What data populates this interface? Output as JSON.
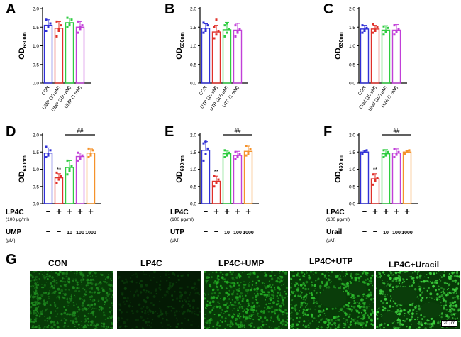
{
  "chart_data": [
    {
      "panel": "A",
      "type": "bar",
      "ylabel": "OD",
      "ylabel_sub": "630nm",
      "ylim": [
        0,
        2.0
      ],
      "yticks": [
        "0.0",
        "0.5",
        "1.0",
        "1.5",
        "2.0"
      ],
      "categories": [
        "CON",
        "UMP (10 μM)",
        "UMP (100 μM)",
        "UMP (1 mM)"
      ],
      "values": [
        1.55,
        1.47,
        1.62,
        1.5
      ],
      "errors": [
        0.15,
        0.18,
        0.12,
        0.15
      ],
      "points": [
        [
          1.4,
          1.5,
          1.6,
          1.7,
          1.52
        ],
        [
          1.25,
          1.4,
          1.55,
          1.65,
          1.45
        ],
        [
          1.5,
          1.6,
          1.7,
          1.75,
          1.55
        ],
        [
          1.35,
          1.45,
          1.55,
          1.65,
          1.5
        ]
      ],
      "colors": [
        "#2f2fd6",
        "#e0302a",
        "#2ecc40",
        "#c13fd8"
      ]
    },
    {
      "panel": "B",
      "type": "bar",
      "ylabel": "OD",
      "ylabel_sub": "630nm",
      "ylim": [
        0,
        2.0
      ],
      "yticks": [
        "0.0",
        "0.5",
        "1.0",
        "1.5",
        "2.0"
      ],
      "categories": [
        "CON",
        "UTP (10 μM)",
        "UTP (100 μM)",
        "UTP (1 mM)"
      ],
      "values": [
        1.47,
        1.37,
        1.43,
        1.42
      ],
      "errors": [
        0.12,
        0.18,
        0.2,
        0.18
      ],
      "points": [
        [
          1.35,
          1.45,
          1.55,
          1.62,
          1.4
        ],
        [
          1.2,
          1.3,
          1.4,
          1.5,
          1.7
        ],
        [
          1.25,
          1.35,
          1.45,
          1.55,
          1.6
        ],
        [
          1.25,
          1.35,
          1.45,
          1.55,
          1.4
        ]
      ],
      "colors": [
        "#2f2fd6",
        "#e0302a",
        "#2ecc40",
        "#c13fd8"
      ]
    },
    {
      "panel": "C",
      "type": "bar",
      "ylabel": "OD",
      "ylabel_sub": "630nm",
      "ylim": [
        0,
        2.0
      ],
      "yticks": [
        "0.0",
        "0.5",
        "1.0",
        "1.5",
        "2.0"
      ],
      "categories": [
        "CON",
        "Urail (10 μM)",
        "Urail (100 μM)",
        "Urail (1 mM)"
      ],
      "values": [
        1.45,
        1.45,
        1.42,
        1.42
      ],
      "errors": [
        0.1,
        0.1,
        0.12,
        0.15
      ],
      "points": [
        [
          1.35,
          1.42,
          1.48,
          1.55,
          1.4
        ],
        [
          1.35,
          1.42,
          1.5,
          1.58,
          1.4
        ],
        [
          1.3,
          1.4,
          1.48,
          1.52,
          1.38
        ],
        [
          1.3,
          1.38,
          1.45,
          1.55,
          1.4
        ]
      ],
      "colors": [
        "#2f2fd6",
        "#e0302a",
        "#2ecc40",
        "#c13fd8"
      ]
    },
    {
      "panel": "D",
      "type": "bar",
      "ylabel": "OD",
      "ylabel_sub": "630nm",
      "ylim": [
        0,
        2.0
      ],
      "yticks": [
        "0.0",
        "0.5",
        "1.0",
        "1.5",
        "2.0"
      ],
      "categories": [
        "",
        "",
        "",
        "",
        ""
      ],
      "values": [
        1.47,
        0.75,
        1.05,
        1.37,
        1.47
      ],
      "errors": [
        0.15,
        0.12,
        0.2,
        0.1,
        0.12
      ],
      "points": [
        [
          1.35,
          1.45,
          1.55,
          1.65,
          1.4
        ],
        [
          0.6,
          0.7,
          0.8,
          0.9,
          0.7
        ],
        [
          0.85,
          0.95,
          1.1,
          1.25,
          1.0
        ],
        [
          1.25,
          1.35,
          1.4,
          1.48,
          1.3
        ],
        [
          1.35,
          1.45,
          1.55,
          1.6,
          1.4
        ]
      ],
      "colors": [
        "#2f2fd6",
        "#e0302a",
        "#2ecc40",
        "#c13fd8",
        "#f5922a"
      ],
      "sig_star": "**",
      "sig_hash": "##"
    },
    {
      "panel": "E",
      "type": "bar",
      "ylabel": "OD",
      "ylabel_sub": "630nm",
      "ylim": [
        0,
        2.0
      ],
      "yticks": [
        "0.0",
        "0.5",
        "1.0",
        "1.5",
        "2.0"
      ],
      "categories": [
        "",
        "",
        "",
        "",
        ""
      ],
      "values": [
        1.55,
        0.65,
        1.45,
        1.4,
        1.52
      ],
      "errors": [
        0.25,
        0.15,
        0.1,
        0.12,
        0.15
      ],
      "points": [
        [
          1.25,
          1.45,
          1.6,
          1.75,
          1.8
        ],
        [
          0.5,
          0.6,
          0.7,
          0.8,
          0.62
        ],
        [
          1.35,
          1.42,
          1.48,
          1.55,
          1.4
        ],
        [
          1.3,
          1.38,
          1.45,
          1.5,
          1.35
        ],
        [
          1.4,
          1.5,
          1.58,
          1.68,
          1.45
        ]
      ],
      "colors": [
        "#2f2fd6",
        "#e0302a",
        "#2ecc40",
        "#c13fd8",
        "#f5922a"
      ],
      "sig_star": "**",
      "sig_hash": "##"
    },
    {
      "panel": "F",
      "type": "bar",
      "ylabel": "OD",
      "ylabel_sub": "630nm",
      "ylim": [
        0,
        2.0
      ],
      "yticks": [
        "0.0",
        "0.5",
        "1.0",
        "1.5",
        "2.0"
      ],
      "categories": [
        "",
        "",
        "",
        "",
        ""
      ],
      "values": [
        1.5,
        0.72,
        1.45,
        1.47,
        1.5
      ],
      "errors": [
        0.05,
        0.15,
        0.12,
        0.12,
        0.05
      ],
      "points": [
        [
          1.45,
          1.5,
          1.55,
          1.48,
          1.52
        ],
        [
          0.55,
          0.65,
          0.75,
          0.85,
          0.7
        ],
        [
          1.35,
          1.42,
          1.5,
          1.55,
          1.4
        ],
        [
          1.35,
          1.45,
          1.5,
          1.58,
          1.42
        ],
        [
          1.45,
          1.5,
          1.55,
          1.48,
          1.52
        ]
      ],
      "colors": [
        "#2f2fd6",
        "#e0302a",
        "#2ecc40",
        "#c13fd8",
        "#f5922a"
      ],
      "sig_star": "**",
      "sig_hash": "##"
    }
  ],
  "treatments": [
    {
      "lp4c_label": "LP4C",
      "lp4c_unit": "(100 μg/ml)",
      "lp4c_marks": [
        "−",
        "+",
        "+",
        "+",
        "+"
      ],
      "drug_label": "UMP",
      "drug_unit": "(μM)",
      "drug_marks": [
        "−",
        "−",
        "10",
        "100",
        "1000"
      ]
    },
    {
      "lp4c_label": "LP4C",
      "lp4c_unit": "(100 μg/ml)",
      "lp4c_marks": [
        "−",
        "+",
        "+",
        "+",
        "+"
      ],
      "drug_label": "UTP",
      "drug_unit": "(μM)",
      "drug_marks": [
        "−",
        "−",
        "10",
        "100",
        "1000"
      ]
    },
    {
      "lp4c_label": "LP4C",
      "lp4c_unit": "(100 μg/ml)",
      "lp4c_marks": [
        "−",
        "+",
        "+",
        "+",
        "+"
      ],
      "drug_label": "Urail",
      "drug_unit": "(μM)",
      "drug_marks": [
        "−",
        "−",
        "10",
        "100",
        "1000"
      ]
    }
  ],
  "panel_g": {
    "letter": "G",
    "labels": [
      "CON",
      "LP4C",
      "LP4C+UMP",
      "LP4C+UTP",
      "LP4C+Uracil"
    ],
    "scale": "20 μm",
    "colors": [
      "#1f8a1f",
      "#0b3f0b",
      "#22a822",
      "#2dbb2d",
      "#3fd43f"
    ]
  }
}
